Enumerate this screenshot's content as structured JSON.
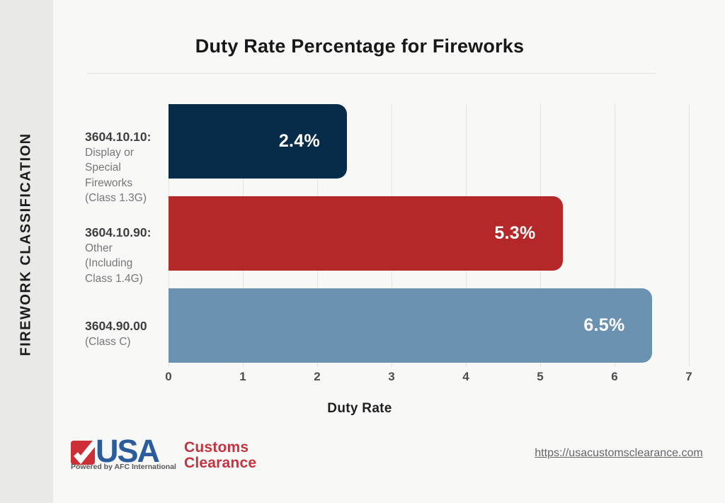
{
  "page": {
    "background": "#f8f8f6",
    "sidebar_background": "#e9e9e7",
    "gridline_color": "#e3e3e0"
  },
  "sidebar": {
    "label": "FIREWORK CLASSIFICATION"
  },
  "title": "Duty Rate Percentage for Fireworks",
  "chart_data": {
    "type": "bar",
    "orientation": "horizontal",
    "title": "Duty Rate Percentage for Fireworks",
    "xlabel": "Duty Rate",
    "ylabel": "FIREWORK CLASSIFICATION",
    "xlim": [
      0,
      7
    ],
    "xticks": [
      0,
      1,
      2,
      3,
      4,
      5,
      6,
      7
    ],
    "grid": true,
    "legend": "none",
    "categories": [
      {
        "code": "3604.10.10:",
        "lines": [
          "Display or",
          "Special",
          "Fireworks",
          "(Class 1.3G)"
        ]
      },
      {
        "code": "3604.10.90:",
        "lines": [
          "Other",
          "(Including",
          "Class 1.4G)"
        ]
      },
      {
        "code": "3604.90.00",
        "lines": [
          "(Class C)"
        ]
      }
    ],
    "values": [
      2.4,
      5.3,
      6.5
    ],
    "value_labels": [
      "2.4%",
      "5.3%",
      "6.5%"
    ],
    "bar_colors": [
      "#062c4a",
      "#b42829",
      "#6c92b1"
    ]
  },
  "footer": {
    "logo": {
      "usa": "USA",
      "customs_line1": "Customs",
      "customs_line2": "Clearance",
      "powered": "Powered by AFC International",
      "check_color": "#ce2e36",
      "usa_color": "#2b5c9c",
      "customs_color": "#c23440"
    },
    "link": "https://usacustomsclearance.com"
  }
}
